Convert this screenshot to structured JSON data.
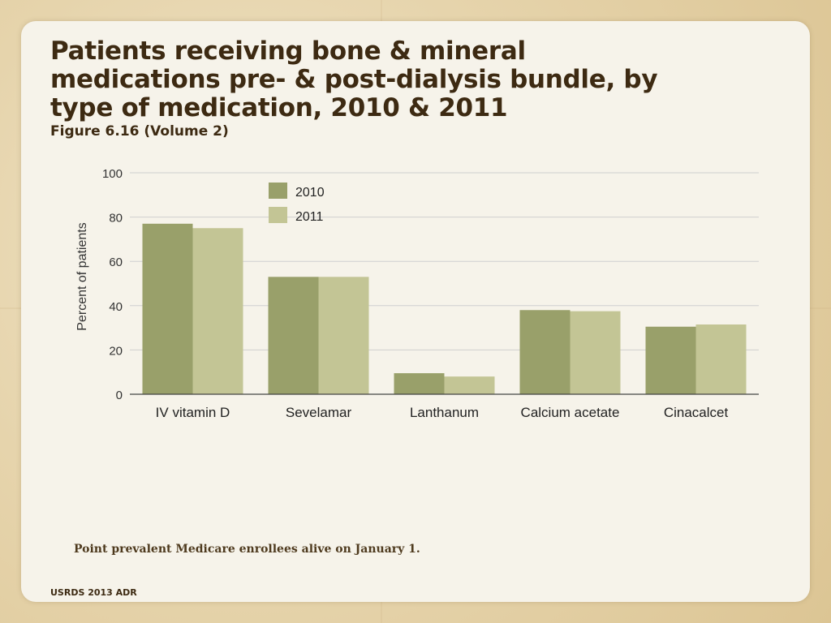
{
  "slide": {
    "title": "Patients receiving bone & mineral medications pre- & post-dialysis bundle, by type of medication, 2010 & 2011",
    "subtitle": "Figure 6.16 (Volume 2)",
    "footnote": "Point prevalent Medicare enrollees alive on January 1.",
    "source": "USRDS 2013 ADR"
  },
  "chart_data": {
    "type": "bar",
    "categories": [
      "IV vitamin D",
      "Sevelamar",
      "Lanthanum",
      "Calcium acetate",
      "Cinacalcet"
    ],
    "series": [
      {
        "name": "2010",
        "values": [
          77,
          53,
          9.5,
          38,
          30.5
        ],
        "color": "#99a06a"
      },
      {
        "name": "2011",
        "values": [
          75,
          53,
          8,
          37.5,
          31.5
        ],
        "color": "#c3c595"
      }
    ],
    "ylabel": "Percent of patients",
    "yticks": [
      0,
      20,
      40,
      60,
      80,
      100
    ],
    "ylim": [
      0,
      100
    ],
    "grid": true,
    "legend": "top-center"
  }
}
